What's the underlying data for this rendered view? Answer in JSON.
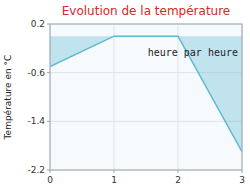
{
  "chart_data": {
    "type": "area",
    "title": "Evolution de la température",
    "ylabel": "Température en °C",
    "xlabel": "heure par heure",
    "x": [
      0,
      1,
      2,
      3
    ],
    "values": [
      -0.5,
      0.0,
      0.0,
      -1.9
    ],
    "color": "#5bb8d4",
    "xlim": [
      0,
      3
    ],
    "ylim": [
      -2.2,
      0.2
    ],
    "xticks": [
      0,
      1,
      2,
      3
    ],
    "yticks": [
      0.2,
      -0.6,
      -1.4,
      -2.2
    ],
    "grid": true
  }
}
